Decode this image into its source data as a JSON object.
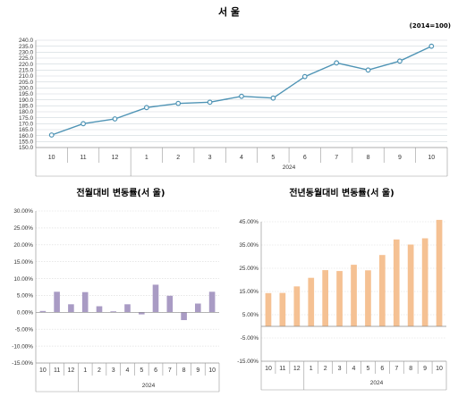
{
  "chart_data": [
    {
      "type": "line",
      "title": "서 울",
      "note": "(2014=100)",
      "categories": [
        "10",
        "11",
        "12",
        "1",
        "2",
        "3",
        "4",
        "5",
        "6",
        "7",
        "8",
        "9",
        "10"
      ],
      "year_label": "2024",
      "values": [
        160.5,
        170,
        174,
        183.5,
        187,
        188,
        193,
        191.5,
        209.5,
        221,
        215,
        222.5,
        235
      ],
      "ylim": [
        150,
        240
      ],
      "yticks": [
        "150.0",
        "155.0",
        "160.0",
        "165.0",
        "170.0",
        "175.0",
        "180.0",
        "185.0",
        "190.0",
        "195.0",
        "200.0",
        "205.0",
        "210.0",
        "215.0",
        "220.0",
        "225.0",
        "230.0",
        "235.0",
        "240.0"
      ],
      "color": "#4f94b5"
    },
    {
      "type": "bar",
      "title": "전월대비 변동률(서 울)",
      "categories": [
        "10",
        "11",
        "12",
        "1",
        "2",
        "3",
        "4",
        "5",
        "6",
        "7",
        "8",
        "9",
        "10"
      ],
      "year_label": "2024",
      "values": [
        0.4,
        6.1,
        2.4,
        6.0,
        1.8,
        0.3,
        2.4,
        -0.6,
        8.2,
        4.9,
        -2.3,
        2.6,
        6.1
      ],
      "ylim": [
        -15,
        30
      ],
      "yticks": [
        "-15.00%",
        "-10.00%",
        "-5.00%",
        "0.00%",
        "5.00%",
        "10.00%",
        "15.00%",
        "20.00%",
        "25.00%",
        "30.00%"
      ],
      "color": "#a99bc4"
    },
    {
      "type": "bar",
      "title": "전년동월대비 변동률(서 울)",
      "categories": [
        "10",
        "11",
        "12",
        "1",
        "2",
        "3",
        "4",
        "5",
        "6",
        "7",
        "8",
        "9",
        "10"
      ],
      "year_label": "2024",
      "values": [
        14.3,
        14.4,
        17.2,
        20.9,
        24.2,
        23.8,
        26.5,
        24.1,
        30.7,
        37.4,
        35.2,
        37.9,
        45.8
      ],
      "ylim": [
        -15,
        45
      ],
      "yticks": [
        "-15.00%",
        "-5.00%",
        "5.00%",
        "15.00%",
        "25.00%",
        "35.00%",
        "45.00%"
      ],
      "color": "#f5c193"
    }
  ]
}
